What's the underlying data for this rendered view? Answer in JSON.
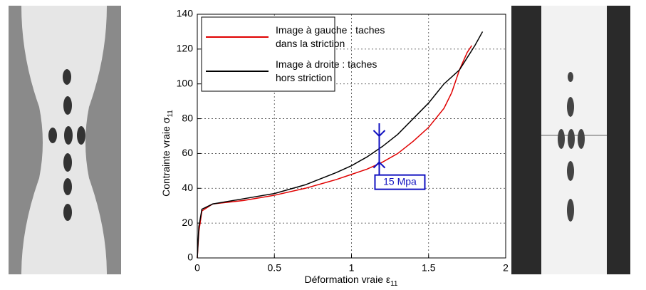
{
  "chart_data": {
    "type": "line",
    "xlabel": "Déformation vraie ε",
    "xlabel_sub": "11",
    "ylabel": "Contrainte vraie σ",
    "ylabel_sub": "11",
    "xlim": [
      0,
      2
    ],
    "xticks": [
      0,
      0.5,
      1,
      1.5,
      2
    ],
    "ylim": [
      0,
      140
    ],
    "yticks": [
      0,
      20,
      40,
      60,
      80,
      100,
      120,
      140
    ],
    "grid": true,
    "legend": "upper left",
    "series": [
      {
        "name": "Image à gauche : taches dans la striction",
        "color": "#e00000",
        "x": [
          0,
          0.01,
          0.03,
          0.1,
          0.3,
          0.5,
          0.7,
          0.9,
          1.0,
          1.1,
          1.2,
          1.3,
          1.4,
          1.5,
          1.6,
          1.65,
          1.7,
          1.75,
          1.78
        ],
        "values": [
          0,
          15,
          27,
          31,
          33,
          36,
          40,
          45,
          48,
          51,
          55,
          60,
          67,
          75,
          86,
          95,
          108,
          118,
          122
        ]
      },
      {
        "name": "Image à droite : taches hors striction",
        "color": "#000000",
        "x": [
          0,
          0.01,
          0.03,
          0.1,
          0.3,
          0.5,
          0.7,
          0.9,
          1.0,
          1.1,
          1.2,
          1.3,
          1.4,
          1.5,
          1.6,
          1.7,
          1.75,
          1.8,
          1.85
        ],
        "values": [
          0,
          18,
          28,
          31,
          34,
          37,
          42,
          49,
          53,
          58,
          64,
          71,
          80,
          89,
          100,
          108,
          115,
          122,
          130
        ]
      }
    ],
    "annotation": {
      "text": "15 Mpa",
      "x": 1.18,
      "y": [
        55,
        70
      ]
    }
  }
}
